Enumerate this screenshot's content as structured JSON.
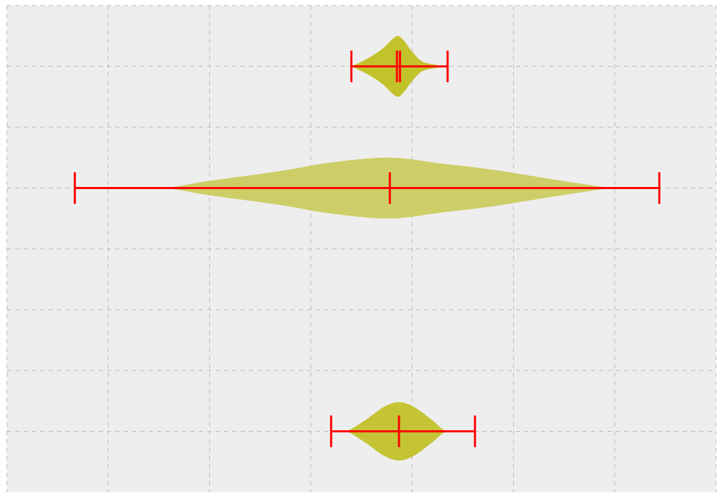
{
  "chart_data": {
    "type": "violin",
    "orientation": "horizontal",
    "title": "",
    "xlabel": "",
    "ylabel": "",
    "xlim": [
      -3.5,
      3.5
    ],
    "ylim": [
      0.5,
      4.5
    ],
    "x_grid_ticks": [
      -2.5,
      -1.5,
      -0.5,
      0.5,
      1.5,
      2.5
    ],
    "y_grid_ticks": [
      1,
      1.5,
      2,
      2.5,
      3,
      3.5,
      4
    ],
    "grid": true,
    "tick_labels_visible": false,
    "background": "#eeeeee",
    "whisker_color": "#ff0000",
    "violins": [
      {
        "position": 4,
        "color": "#bfbf20",
        "opacity": 0.95,
        "min": -0.1,
        "max": 0.85,
        "median": 0.35,
        "mean": 0.38,
        "density": [
          [
            -0.1,
            0.0
          ],
          [
            0.05,
            0.06
          ],
          [
            0.2,
            0.14
          ],
          [
            0.3,
            0.22
          ],
          [
            0.36,
            0.25
          ],
          [
            0.42,
            0.21
          ],
          [
            0.5,
            0.12
          ],
          [
            0.6,
            0.04
          ],
          [
            0.72,
            0.015
          ],
          [
            0.85,
            0.0
          ]
        ]
      },
      {
        "position": 3,
        "color": "#c8c850",
        "opacity": 0.85,
        "min": -2.83,
        "max": 2.94,
        "median": 0.28,
        "mean": 0.28,
        "density": [
          [
            -2.83,
            0.0
          ],
          [
            -2.0,
            0.0
          ],
          [
            -1.5,
            0.06
          ],
          [
            -0.8,
            0.14
          ],
          [
            -0.3,
            0.21
          ],
          [
            0.28,
            0.25
          ],
          [
            0.8,
            0.2
          ],
          [
            1.3,
            0.15
          ],
          [
            1.9,
            0.07
          ],
          [
            2.5,
            0.0
          ],
          [
            2.94,
            0.0
          ]
        ]
      },
      {
        "position": 1,
        "color": "#bfbf20",
        "opacity": 0.9,
        "min": -0.3,
        "max": 1.12,
        "median": 0.37,
        "mean": 0.37,
        "density": [
          [
            -0.3,
            0.0
          ],
          [
            -0.15,
            0.0
          ],
          [
            0.05,
            0.1
          ],
          [
            0.22,
            0.2
          ],
          [
            0.37,
            0.24
          ],
          [
            0.52,
            0.2
          ],
          [
            0.7,
            0.09
          ],
          [
            0.85,
            0.0
          ],
          [
            1.12,
            0.0
          ]
        ]
      }
    ]
  }
}
